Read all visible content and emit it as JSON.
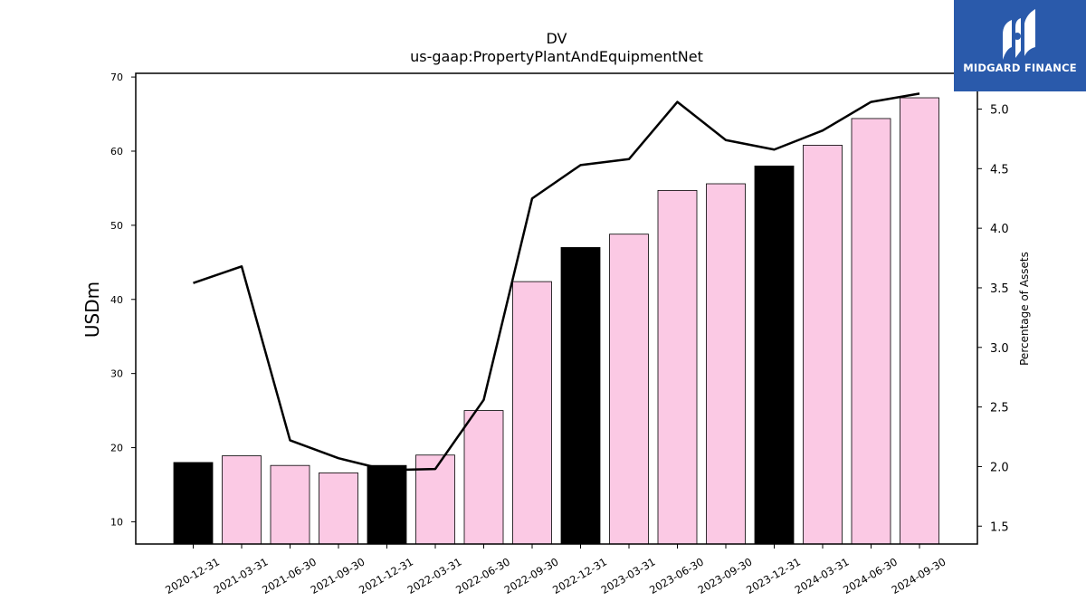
{
  "chart_data": {
    "type": "bar",
    "title": "DV",
    "subtitle": "us-gaap:PropertyPlantAndEquipmentNet",
    "ylabel": "USDm",
    "y2label": "Percentage of Assets",
    "categories": [
      "2020-12-31",
      "2021-03-31",
      "2021-06-30",
      "2021-09-30",
      "2021-12-31",
      "2022-03-31",
      "2022-06-30",
      "2022-09-30",
      "2022-12-31",
      "2023-03-31",
      "2023-06-30",
      "2023-09-30",
      "2023-12-31",
      "2024-03-31",
      "2024-06-30",
      "2024-09-30"
    ],
    "ylim": [
      7,
      70.5
    ],
    "y2lim": [
      1.35,
      5.3
    ],
    "yticks": [
      10,
      20,
      30,
      40,
      50,
      60,
      70
    ],
    "y2ticks": [
      1.5,
      2.0,
      2.5,
      3.0,
      3.5,
      4.0,
      4.5,
      5.0
    ],
    "series": [
      {
        "type": "bar",
        "axis": "left",
        "values": [
          18.0,
          18.9,
          17.6,
          16.6,
          17.6,
          19.0,
          25.0,
          42.4,
          47.0,
          48.8,
          54.7,
          55.6,
          58.0,
          60.8,
          64.4,
          67.2
        ],
        "colors": [
          "#000000",
          "#fbc9e4",
          "#fbc9e4",
          "#fbc9e4",
          "#000000",
          "#fbc9e4",
          "#fbc9e4",
          "#fbc9e4",
          "#000000",
          "#fbc9e4",
          "#fbc9e4",
          "#fbc9e4",
          "#000000",
          "#fbc9e4",
          "#fbc9e4",
          "#fbc9e4"
        ]
      },
      {
        "type": "line",
        "axis": "right",
        "color": "#000000",
        "values": [
          3.54,
          3.68,
          2.22,
          2.07,
          1.97,
          1.98,
          2.56,
          4.25,
          4.53,
          4.58,
          5.06,
          4.74,
          4.66,
          4.82,
          5.06,
          5.13
        ]
      }
    ]
  },
  "logo": {
    "text": "MIDGARD FINANCE",
    "background": "#2a5aab"
  }
}
